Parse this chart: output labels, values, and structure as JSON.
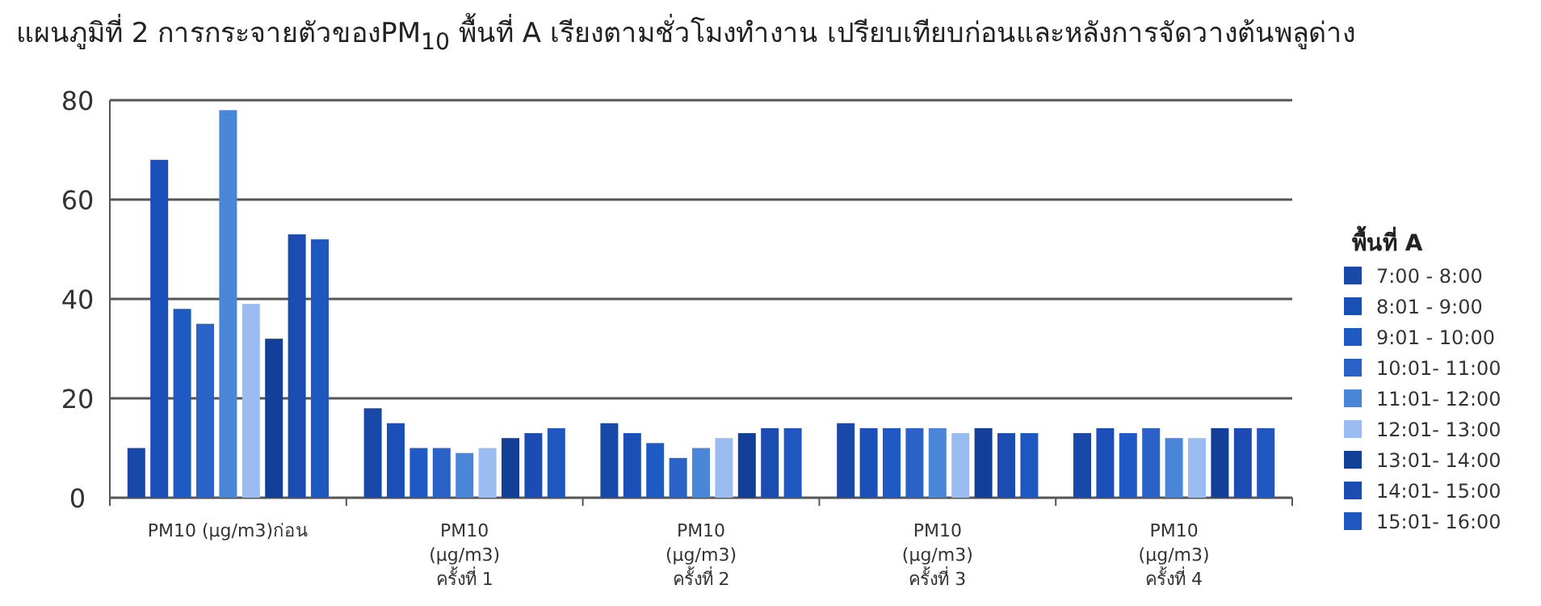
{
  "chart_data": {
    "type": "bar",
    "title": "แผนภูมิที่ 2 การกระจายตัวของPM$_{10}$ พื้นที่ A เรียงตามชั่วโมงทำงาน เปรียบเทียบก่อนและหลังการจัดวางต้นพลูด่าง",
    "categories": [
      "PM10 (µg/m3)ก่อน",
      "PM10\n(µg/m3)\nครั้งที่ 1",
      "PM10\n(µg/m3)\nครั้งที่ 2",
      "PM10\n(µg/m3)\nครั้งที่ 3",
      "PM10\n(µg/m3)\nครั้งที่ 4"
    ],
    "legend_title": "พื้นที่ A",
    "series": [
      {
        "name": "7:00 - 8:00",
        "color": "#1848a8",
        "values": [
          10,
          18,
          15,
          15,
          13
        ]
      },
      {
        "name": "8:01 - 9:00",
        "color": "#1a4fb8",
        "values": [
          68,
          15,
          13,
          14,
          14
        ]
      },
      {
        "name": "9:01 - 10:00",
        "color": "#1f5ac4",
        "values": [
          38,
          10,
          11,
          14,
          13
        ]
      },
      {
        "name": "10:01- 11:00",
        "color": "#2a62c8",
        "values": [
          35,
          10,
          8,
          14,
          14
        ]
      },
      {
        "name": "11:01- 12:00",
        "color": "#4a86d8",
        "values": [
          78,
          9,
          10,
          14,
          12
        ]
      },
      {
        "name": "12:01- 13:00",
        "color": "#9bbcf0",
        "values": [
          39,
          10,
          12,
          13,
          12
        ]
      },
      {
        "name": "13:01- 14:00",
        "color": "#123f98",
        "values": [
          32,
          12,
          13,
          14,
          14
        ]
      },
      {
        "name": "14:01- 15:00",
        "color": "#1a4cb2",
        "values": [
          53,
          13,
          14,
          13,
          14
        ]
      },
      {
        "name": "15:01- 16:00",
        "color": "#1f57c0",
        "values": [
          52,
          14,
          14,
          13,
          14
        ]
      }
    ],
    "ylim": [
      0,
      80
    ],
    "yticks": [
      0,
      20,
      40,
      60,
      80
    ],
    "grid": "y",
    "legend": "right"
  }
}
